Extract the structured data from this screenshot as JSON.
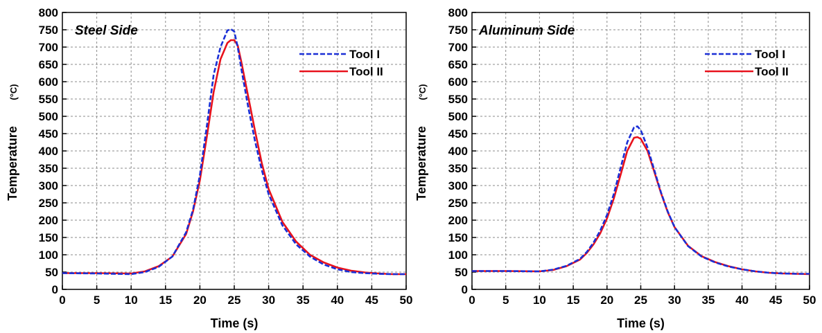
{
  "chart_data": [
    {
      "type": "line",
      "title": "Steel Side",
      "xlabel": "Time (s)",
      "ylabel": "Temperature",
      "yunit": "(°C)",
      "xlim": [
        0,
        50
      ],
      "ylim": [
        0,
        800
      ],
      "xticks": [
        "0",
        "5",
        "10",
        "15",
        "20",
        "25",
        "30",
        "35",
        "40",
        "45",
        "50"
      ],
      "yticks": [
        "0",
        "50",
        "100",
        "150",
        "200",
        "250",
        "300",
        "350",
        "400",
        "450",
        "500",
        "550",
        "600",
        "650",
        "700",
        "750",
        "800"
      ],
      "grid": true,
      "legend_position": "top-right",
      "series": [
        {
          "name": "Tool I",
          "color": "#1a2fd6",
          "style": "dashed",
          "x": [
            0,
            5,
            10,
            12,
            14,
            16,
            18,
            19,
            20,
            21,
            22,
            23,
            24,
            24.5,
            25,
            25.5,
            26,
            27,
            28,
            29,
            30,
            32,
            34,
            36,
            38,
            40,
            42,
            44,
            46,
            48,
            50
          ],
          "y": [
            47,
            46,
            44,
            50,
            65,
            95,
            165,
            230,
            330,
            470,
            620,
            700,
            748,
            752,
            745,
            700,
            640,
            530,
            430,
            345,
            275,
            185,
            130,
            95,
            72,
            58,
            50,
            47,
            45,
            44,
            44
          ]
        },
        {
          "name": "Tool II",
          "color": "#e8121c",
          "style": "solid",
          "x": [
            0,
            5,
            10,
            12,
            14,
            16,
            18,
            19,
            20,
            21,
            22,
            23,
            24,
            24.5,
            25,
            25.5,
            26,
            27,
            28,
            29,
            30,
            32,
            34,
            36,
            38,
            40,
            42,
            44,
            46,
            48,
            50
          ],
          "y": [
            47,
            47,
            46,
            52,
            67,
            95,
            160,
            225,
            315,
            440,
            570,
            665,
            712,
            720,
            720,
            705,
            660,
            560,
            460,
            365,
            290,
            195,
            138,
            100,
            78,
            63,
            54,
            49,
            46,
            44,
            44
          ]
        }
      ]
    },
    {
      "type": "line",
      "title": "Aluminum Side",
      "xlabel": "Time (s)",
      "ylabel": "Temperature",
      "yunit": "(°C)",
      "xlim": [
        0,
        50
      ],
      "ylim": [
        0,
        800
      ],
      "xticks": [
        "0",
        "5",
        "10",
        "15",
        "20",
        "25",
        "30",
        "35",
        "40",
        "45",
        "50"
      ],
      "yticks": [
        "0",
        "50",
        "100",
        "150",
        "200",
        "250",
        "300",
        "350",
        "400",
        "450",
        "500",
        "550",
        "600",
        "650",
        "700",
        "750",
        "800"
      ],
      "grid": true,
      "legend_position": "top-right",
      "series": [
        {
          "name": "Tool I",
          "color": "#1a2fd6",
          "style": "dashed",
          "x": [
            0,
            5,
            10,
            12,
            14,
            16,
            17,
            18,
            19,
            20,
            21,
            22,
            23,
            24,
            24.5,
            25,
            26,
            27,
            28,
            29,
            30,
            32,
            34,
            36,
            38,
            40,
            42,
            44,
            46,
            48,
            50
          ],
          "y": [
            53,
            53,
            52,
            57,
            68,
            88,
            108,
            135,
            170,
            215,
            275,
            350,
            425,
            468,
            471,
            460,
            410,
            345,
            280,
            225,
            180,
            125,
            95,
            78,
            66,
            58,
            52,
            48,
            46,
            45,
            45
          ]
        },
        {
          "name": "Tool II",
          "color": "#e8121c",
          "style": "solid",
          "x": [
            0,
            5,
            10,
            12,
            14,
            16,
            17,
            18,
            19,
            20,
            21,
            22,
            23,
            24,
            24.5,
            25,
            26,
            27,
            28,
            29,
            30,
            32,
            34,
            36,
            38,
            40,
            42,
            44,
            46,
            48,
            50
          ],
          "y": [
            53,
            53,
            52,
            56,
            67,
            86,
            105,
            130,
            162,
            205,
            262,
            330,
            400,
            438,
            440,
            435,
            400,
            340,
            278,
            223,
            180,
            126,
            96,
            79,
            67,
            58,
            52,
            48,
            46,
            45,
            44
          ]
        }
      ]
    }
  ]
}
